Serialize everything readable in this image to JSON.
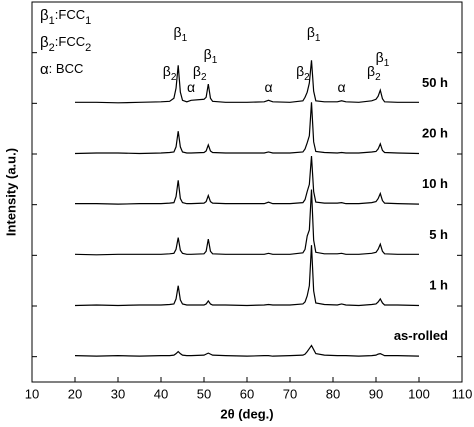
{
  "chart_data": {
    "type": "line",
    "x_label": "2θ (deg.)",
    "y_label": "Intensity (a.u.)",
    "xlim": [
      10,
      110
    ],
    "xticks": [
      10,
      20,
      30,
      40,
      50,
      60,
      70,
      80,
      90,
      100,
      110
    ],
    "ylim": [
      0,
      750
    ],
    "x": [
      20,
      25,
      30,
      35,
      40,
      42,
      43,
      43.5,
      44,
      44.5,
      45,
      46,
      47,
      50,
      50.5,
      51,
      51.5,
      52,
      55,
      60,
      64,
      65,
      66,
      70,
      73,
      73.5,
      74,
      74.5,
      75,
      75.5,
      76,
      78,
      81,
      82,
      83,
      86,
      89,
      90,
      90.5,
      91,
      91.5,
      92,
      95,
      100
    ],
    "series": [
      {
        "name": "as-rolled",
        "color": "#000000",
        "values": [
          2,
          1,
          2,
          1,
          2,
          2,
          3,
          6,
          10,
          6,
          3,
          2,
          2,
          3,
          5,
          7,
          5,
          3,
          2,
          1,
          2,
          2,
          1,
          2,
          3,
          5,
          10,
          16,
          22,
          14,
          6,
          3,
          2,
          2,
          2,
          1,
          2,
          3,
          5,
          6,
          4,
          2,
          2,
          1
        ]
      },
      {
        "name": "1 h",
        "color": "#000000",
        "values": [
          1,
          2,
          1,
          2,
          2,
          3,
          4,
          14,
          40,
          12,
          4,
          2,
          2,
          2,
          4,
          10,
          4,
          2,
          2,
          1,
          2,
          3,
          2,
          2,
          4,
          8,
          20,
          40,
          120,
          30,
          6,
          3,
          2,
          4,
          2,
          1,
          3,
          4,
          8,
          14,
          6,
          2,
          2,
          1
        ]
      },
      {
        "name": "5 h",
        "color": "#000000",
        "values": [
          2,
          1,
          2,
          2,
          2,
          3,
          4,
          12,
          35,
          10,
          4,
          2,
          2,
          3,
          8,
          32,
          8,
          3,
          2,
          2,
          2,
          4,
          2,
          2,
          5,
          12,
          38,
          50,
          130,
          30,
          6,
          3,
          3,
          4,
          2,
          2,
          4,
          6,
          12,
          22,
          8,
          3,
          2,
          2
        ]
      },
      {
        "name": "10 h",
        "color": "#000000",
        "values": [
          2,
          2,
          1,
          2,
          2,
          3,
          4,
          16,
          48,
          12,
          4,
          2,
          2,
          3,
          6,
          18,
          6,
          3,
          2,
          2,
          2,
          5,
          2,
          2,
          4,
          10,
          26,
          40,
          96,
          26,
          5,
          3,
          3,
          4,
          2,
          2,
          4,
          6,
          12,
          22,
          8,
          3,
          2,
          1
        ]
      },
      {
        "name": "20 h",
        "color": "#000000",
        "values": [
          1,
          2,
          2,
          1,
          2,
          3,
          4,
          14,
          45,
          14,
          4,
          2,
          2,
          3,
          6,
          18,
          6,
          3,
          2,
          2,
          2,
          4,
          2,
          2,
          4,
          10,
          22,
          36,
          102,
          24,
          5,
          3,
          2,
          3,
          2,
          2,
          4,
          5,
          10,
          20,
          7,
          3,
          2,
          1
        ]
      },
      {
        "name": "50 h",
        "color": "#000000",
        "values": [
          2,
          2,
          1,
          2,
          3,
          4,
          10,
          30,
          75,
          22,
          6,
          3,
          6,
          8,
          12,
          38,
          10,
          4,
          2,
          2,
          3,
          6,
          3,
          2,
          5,
          12,
          22,
          40,
          85,
          24,
          5,
          3,
          3,
          5,
          3,
          2,
          5,
          8,
          14,
          26,
          9,
          3,
          2,
          2
        ]
      }
    ],
    "phase_legend": [
      {
        "symbol": "β",
        "symbol_sub": "1",
        "phase": ":FCC",
        "phase_sub": "1"
      },
      {
        "symbol": "β",
        "symbol_sub": "2",
        "phase": ":FCC",
        "phase_sub": "2"
      },
      {
        "symbol": "α",
        "phase": ": BCC"
      }
    ],
    "peak_labels": [
      {
        "label": "β",
        "sub": "2",
        "x": 42
      },
      {
        "label": "β",
        "sub": "1",
        "x": 44.5
      },
      {
        "label": "α",
        "x": 47
      },
      {
        "label": "β",
        "sub": "2",
        "x": 49
      },
      {
        "label": "β",
        "sub": "1",
        "x": 51.5
      },
      {
        "label": "α",
        "x": 65
      },
      {
        "label": "β",
        "sub": "2",
        "x": 73
      },
      {
        "label": "β",
        "sub": "1",
        "x": 75.5
      },
      {
        "label": "α",
        "x": 82
      },
      {
        "label": "β",
        "sub": "2",
        "x": 89.5
      },
      {
        "label": "β",
        "sub": "1",
        "x": 91.5
      }
    ]
  }
}
